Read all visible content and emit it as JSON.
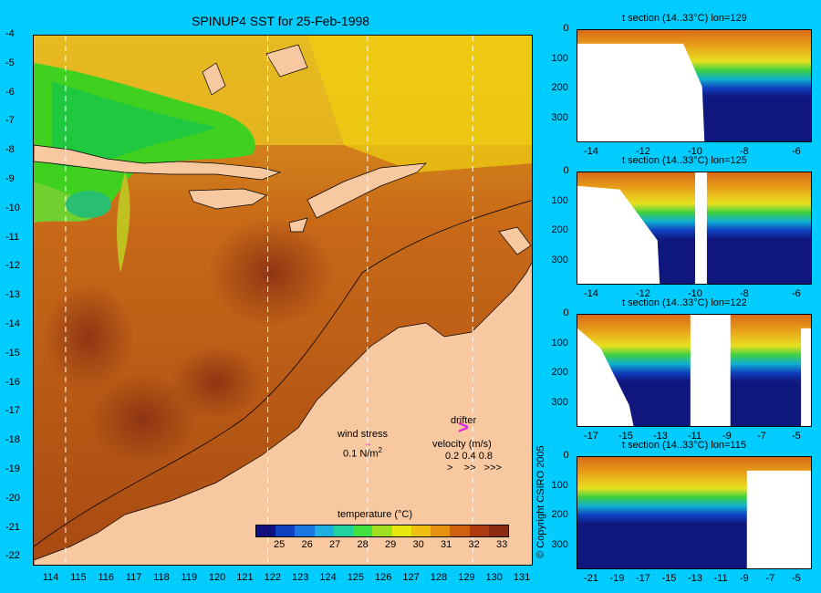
{
  "map": {
    "title": "SPINUP4 SST for 25-Feb-1998",
    "y_ticks": [
      "-4",
      "-5",
      "-6",
      "-7",
      "-8",
      "-9",
      "-10",
      "-11",
      "-12",
      "-13",
      "-14",
      "-15",
      "-16",
      "-17",
      "-18",
      "-19",
      "-20",
      "-21",
      "-22"
    ],
    "x_ticks": [
      "114",
      "115",
      "116",
      "117",
      "118",
      "119",
      "120",
      "121",
      "122",
      "123",
      "124",
      "125",
      "126",
      "127",
      "128",
      "129",
      "130",
      "131"
    ],
    "section_lon_lines": [
      114.5,
      121.8,
      125.4,
      129.2
    ]
  },
  "legend": {
    "wind_stress_label": "wind stress",
    "wind_stress_scale": "0.1 N/m",
    "wind_stress_sup": "2",
    "drifter_label": "drifter",
    "velocity_label": "velocity (m/s)",
    "velocity_scale": "0.2  0.4  0.8",
    "velocity_arrows": ">    >>   >>>"
  },
  "colorbar": {
    "label": "temperature (°C)",
    "ticks": [
      "25",
      "26",
      "27",
      "28",
      "29",
      "30",
      "31",
      "32",
      "33"
    ],
    "colors": [
      "#10107f",
      "#1040c0",
      "#1a78e0",
      "#20b0e0",
      "#22d0a0",
      "#40e040",
      "#a0e020",
      "#e8e810",
      "#f0c010",
      "#e89010",
      "#d06010",
      "#b03a10",
      "#8a2a10"
    ]
  },
  "copyright": "© Copyright CSIRO 2005",
  "sections": [
    {
      "title": "t section (14..33°C) lon=129",
      "y_ticks": [
        "0",
        "100",
        "200",
        "300"
      ],
      "x_ticks": [
        "-14",
        "-12",
        "-10",
        "-8",
        "-6"
      ]
    },
    {
      "title": "t section (14..33°C) lon=125",
      "y_ticks": [
        "0",
        "100",
        "200",
        "300"
      ],
      "x_ticks": [
        "-14",
        "-12",
        "-10",
        "-8",
        "-6"
      ]
    },
    {
      "title": "t section (14..33°C) lon=122",
      "y_ticks": [
        "0",
        "100",
        "200",
        "300"
      ],
      "x_ticks": [
        "-17",
        "-15",
        "-13",
        "-11",
        "-9",
        "-7",
        "-5"
      ]
    },
    {
      "title": "t section (14..33°C) lon=115",
      "y_ticks": [
        "0",
        "100",
        "200",
        "300"
      ],
      "x_ticks": [
        "-21",
        "-19",
        "-17",
        "-15",
        "-13",
        "-11",
        "-9",
        "-7",
        "-5"
      ]
    }
  ]
}
